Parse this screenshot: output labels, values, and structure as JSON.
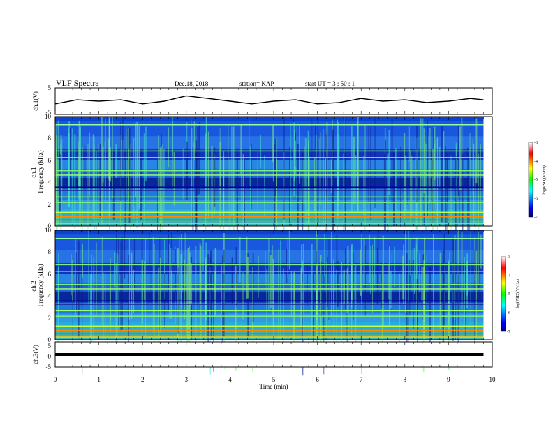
{
  "header": {
    "title": "VLF Spectra",
    "date": "Dec.18, 2018",
    "station": "station= KAP",
    "start_ut": "start  UT =   3 : 50 : 1"
  },
  "chart_data": {
    "type": "heatmap",
    "panels": [
      {
        "name": "ch1-waveform",
        "ylabel": "ch.1(V)",
        "ylim": [
          -5,
          5
        ],
        "y_tick_labels": [
          "5",
          "-5"
        ],
        "series": [
          {
            "x": [
              0,
              0.5,
              1,
              1.5,
              2,
              2.5,
              3,
              3.5,
              4,
              4.5,
              5,
              5.5,
              6,
              6.5,
              7,
              7.5,
              8,
              8.5,
              9,
              9.5,
              9.8
            ],
            "y": [
              -1,
              0.5,
              0,
              0.5,
              -1,
              0,
              2,
              1,
              0,
              -1,
              0,
              0.5,
              -1,
              -0.5,
              1,
              0,
              0.5,
              -0.5,
              0,
              1,
              0.5
            ]
          }
        ]
      },
      {
        "name": "ch1-spectrogram",
        "ylabel": "ch.1\nFrequency (kHz)",
        "ylim": [
          0,
          10
        ],
        "y_tick_labels": [
          "0",
          "2",
          "4",
          "6",
          "8",
          "10"
        ],
        "colorbar": {
          "label": "log(PSD)(V²/Hz)",
          "range": [
            -7,
            -3
          ],
          "tick_labels": [
            "-3",
            "-4",
            "-5",
            "-6",
            "-7"
          ]
        }
      },
      {
        "name": "ch2-spectrogram",
        "ylabel": "ch.2\nFrequency (kHz)",
        "ylim": [
          0,
          10
        ],
        "y_tick_labels": [
          "0",
          "2",
          "4",
          "6",
          "8",
          "10"
        ],
        "colorbar": {
          "label": "log(PSD)(V²/Hz)",
          "range": [
            -7,
            -3
          ],
          "tick_labels": [
            "-3",
            "-4",
            "-5",
            "-6",
            "-7"
          ]
        }
      },
      {
        "name": "ch3-waveform",
        "ylabel": "ch.3(V)",
        "ylim": [
          -5,
          5
        ],
        "y_tick_labels": [
          "5",
          "0",
          "-5"
        ],
        "series": [
          {
            "x": [
              0,
              9.8
            ],
            "y": [
              0,
              0
            ]
          }
        ]
      }
    ],
    "xlabel": "Time  (min)",
    "xlim": [
      0,
      10
    ],
    "x_tick_labels": [
      "0",
      "1",
      "2",
      "3",
      "4",
      "5",
      "6",
      "7",
      "8",
      "9",
      "10"
    ],
    "data_end_min": 9.8
  }
}
